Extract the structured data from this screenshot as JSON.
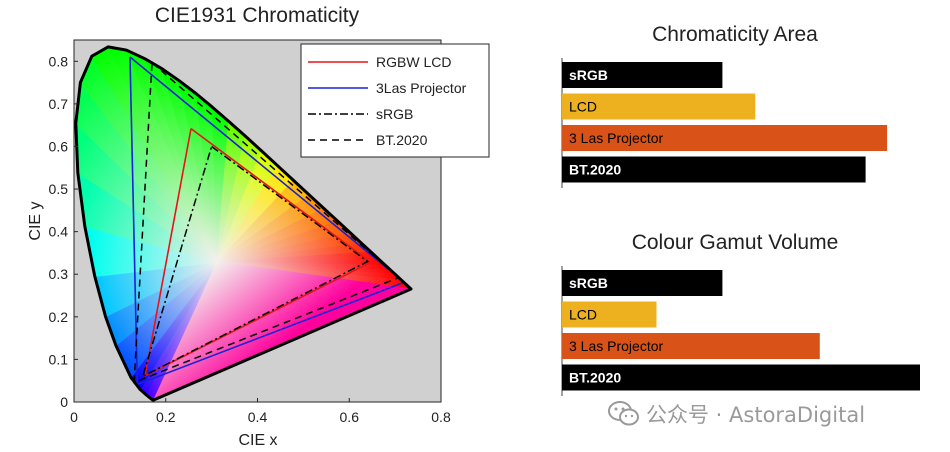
{
  "chart_data": [
    {
      "type": "line",
      "title": "CIE1931 Chromaticity",
      "xlabel": "CIE x",
      "ylabel": "CIE y",
      "xlim": [
        0,
        0.8
      ],
      "ylim": [
        0,
        0.85
      ],
      "xticks": [
        "0",
        "0.2",
        "0.4",
        "0.6",
        "0.8"
      ],
      "yticks": [
        "0",
        "0.1",
        "0.2",
        "0.3",
        "0.4",
        "0.5",
        "0.6",
        "0.7",
        "0.8"
      ],
      "legend_position": "top-right",
      "background": "#d0d0d0",
      "spectral_locus": [
        [
          0.1741,
          0.005
        ],
        [
          0.1738,
          0.0049
        ],
        [
          0.1736,
          0.0049
        ],
        [
          0.1733,
          0.0048
        ],
        [
          0.1726,
          0.0048
        ],
        [
          0.1714,
          0.0051
        ],
        [
          0.1689,
          0.0069
        ],
        [
          0.1644,
          0.0109
        ],
        [
          0.1566,
          0.0177
        ],
        [
          0.144,
          0.0297
        ],
        [
          0.1241,
          0.0578
        ],
        [
          0.0913,
          0.1327
        ],
        [
          0.0687,
          0.2007
        ],
        [
          0.0454,
          0.295
        ],
        [
          0.0235,
          0.4127
        ],
        [
          0.0082,
          0.5384
        ],
        [
          0.0039,
          0.6548
        ],
        [
          0.0139,
          0.7502
        ],
        [
          0.0389,
          0.812
        ],
        [
          0.0743,
          0.8338
        ],
        [
          0.1142,
          0.8262
        ],
        [
          0.1547,
          0.8059
        ],
        [
          0.1929,
          0.7816
        ],
        [
          0.2296,
          0.7543
        ],
        [
          0.2658,
          0.7243
        ],
        [
          0.3016,
          0.6923
        ],
        [
          0.3373,
          0.6589
        ],
        [
          0.3731,
          0.6245
        ],
        [
          0.4087,
          0.5896
        ],
        [
          0.4441,
          0.5547
        ],
        [
          0.4788,
          0.5202
        ],
        [
          0.5125,
          0.4866
        ],
        [
          0.5448,
          0.4544
        ],
        [
          0.5752,
          0.4242
        ],
        [
          0.6029,
          0.3965
        ],
        [
          0.627,
          0.3725
        ],
        [
          0.6482,
          0.3514
        ],
        [
          0.6658,
          0.334
        ],
        [
          0.6801,
          0.3197
        ],
        [
          0.6915,
          0.3083
        ],
        [
          0.7006,
          0.2993
        ],
        [
          0.714,
          0.2859
        ],
        [
          0.7347,
          0.2653
        ]
      ],
      "series": [
        {
          "name": "RGBW LCD",
          "color": "#e8141a",
          "style": "solid",
          "points": [
            [
              0.255,
              0.642
            ],
            [
              0.647,
              0.328
            ],
            [
              0.155,
              0.062
            ],
            [
              0.255,
              0.642
            ]
          ]
        },
        {
          "name": "3Las Projector",
          "color": "#1a22d6",
          "style": "solid",
          "points": [
            [
              0.122,
              0.81
            ],
            [
              0.72,
              0.281
            ],
            [
              0.138,
              0.041
            ],
            [
              0.122,
              0.81
            ]
          ]
        },
        {
          "name": "sRGB",
          "color": "#000000",
          "style": "dashdot",
          "points": [
            [
              0.3,
              0.6
            ],
            [
              0.64,
              0.33
            ],
            [
              0.15,
              0.06
            ],
            [
              0.3,
              0.6
            ]
          ]
        },
        {
          "name": "BT.2020",
          "color": "#000000",
          "style": "dashed",
          "points": [
            [
              0.17,
              0.797
            ],
            [
              0.708,
              0.292
            ],
            [
              0.131,
              0.046
            ],
            [
              0.17,
              0.797
            ]
          ]
        }
      ]
    },
    {
      "type": "bar",
      "orientation": "horizontal",
      "title": "Chromaticity Area",
      "categories": [
        "sRGB",
        "LCD",
        "3 Las Projector",
        "BT.2020"
      ],
      "values": [
        0.112,
        0.135,
        0.227,
        0.212
      ],
      "xlim": [
        0,
        0.25
      ],
      "colors": [
        "#000000",
        "#edb120",
        "#d95319",
        "#000000"
      ],
      "label_colors": [
        "#ffffff",
        "#000000",
        "#000000",
        "#ffffff"
      ]
    },
    {
      "type": "bar",
      "orientation": "horizontal",
      "title": "Colour Gamut Volume",
      "categories": [
        "sRGB",
        "LCD",
        "3 Las Projector",
        "BT.2020"
      ],
      "values": [
        0.112,
        0.066,
        0.18,
        0.25
      ],
      "xlim": [
        0,
        0.25
      ],
      "colors": [
        "#000000",
        "#edb120",
        "#d95319",
        "#000000"
      ],
      "label_colors": [
        "#ffffff",
        "#000000",
        "#000000",
        "#ffffff"
      ]
    }
  ],
  "watermark": {
    "text": "公众号 · AstoraDigital",
    "icon": "wechat-icon"
  }
}
